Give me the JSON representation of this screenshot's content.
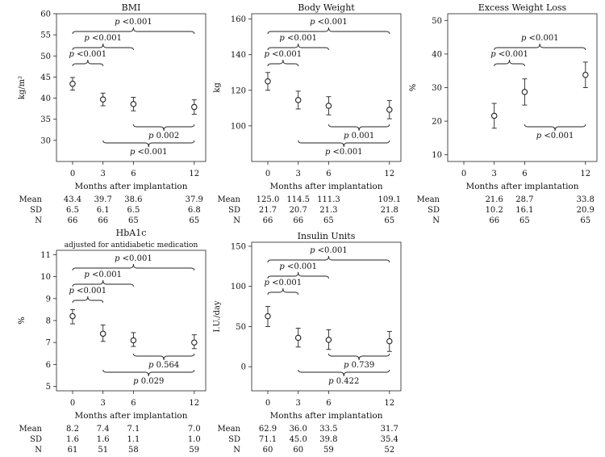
{
  "x_ticks": [
    0,
    3,
    6,
    12
  ],
  "x_axis_label": "Months after implantation",
  "row_labels": [
    "Mean",
    "SD",
    "N"
  ],
  "chart_data": [
    {
      "type": "scatter",
      "title": "BMI",
      "subtitle": "",
      "ylabel": "kg/m²",
      "ylim": [
        25,
        60
      ],
      "yticks": [
        30,
        35,
        40,
        45,
        50,
        55,
        60
      ],
      "x": [
        0,
        3,
        6,
        12
      ],
      "series": [
        {
          "name": "",
          "mean": [
            43.4,
            39.7,
            38.6,
            37.9
          ],
          "ci_low": [
            41.9,
            38.2,
            37.0,
            36.2
          ],
          "ci_high": [
            44.9,
            41.2,
            40.2,
            39.6
          ]
        }
      ],
      "table": {
        "mean": [
          "43.4",
          "39.7",
          "38.6",
          "37.9"
        ],
        "sd": [
          "6.5",
          "6.1",
          "6.5",
          "6.8"
        ],
        "n": [
          "66",
          "66",
          "65",
          "65"
        ]
      },
      "annotations": [
        {
          "text": "p <0.001",
          "from": 0,
          "to": 12,
          "side": "above",
          "level": 3
        },
        {
          "text": "p <0.001",
          "from": 0,
          "to": 6,
          "side": "above",
          "level": 2
        },
        {
          "text": "p <0.001",
          "from": 0,
          "to": 3,
          "side": "above",
          "level": 1
        },
        {
          "text": "p 0.002",
          "from": 6,
          "to": 12,
          "side": "below",
          "level": 1
        },
        {
          "text": "p <0.001",
          "from": 3,
          "to": 12,
          "side": "below",
          "level": 2
        }
      ]
    },
    {
      "type": "scatter",
      "title": "Body Weight",
      "subtitle": "",
      "ylabel": "kg",
      "ylim": [
        80,
        163
      ],
      "yticks": [
        100,
        120,
        140,
        160
      ],
      "x": [
        0,
        3,
        6,
        12
      ],
      "series": [
        {
          "name": "",
          "mean": [
            125.0,
            114.5,
            111.3,
            109.1
          ],
          "ci_low": [
            120.0,
            109.5,
            106.2,
            104.0
          ],
          "ci_high": [
            130.0,
            119.5,
            116.4,
            114.2
          ]
        }
      ],
      "table": {
        "mean": [
          "125.0",
          "114.5",
          "111.3",
          "109.1"
        ],
        "sd": [
          "21.7",
          "20.7",
          "21.3",
          "21.8"
        ],
        "n": [
          "66",
          "66",
          "65",
          "65"
        ]
      },
      "annotations": [
        {
          "text": "p <0.001",
          "from": 0,
          "to": 12,
          "side": "above",
          "level": 3
        },
        {
          "text": "p <0.001",
          "from": 0,
          "to": 6,
          "side": "above",
          "level": 2
        },
        {
          "text": "p <0.001",
          "from": 0,
          "to": 3,
          "side": "above",
          "level": 1
        },
        {
          "text": "p 0.001",
          "from": 6,
          "to": 12,
          "side": "below",
          "level": 1
        },
        {
          "text": "p <0.001",
          "from": 3,
          "to": 12,
          "side": "below",
          "level": 2
        }
      ]
    },
    {
      "type": "scatter",
      "title": "Excess Weight Loss",
      "subtitle": "",
      "ylabel": "%",
      "ylim": [
        8,
        52
      ],
      "yticks": [
        10,
        20,
        30,
        40,
        50
      ],
      "x": [
        0,
        3,
        6,
        12
      ],
      "series": [
        {
          "name": "",
          "mean": [
            null,
            21.6,
            28.7,
            33.8
          ],
          "ci_low": [
            null,
            17.9,
            24.8,
            30.0
          ],
          "ci_high": [
            null,
            25.3,
            32.6,
            37.6
          ]
        }
      ],
      "table": {
        "mean": [
          "",
          "21.6",
          "28.7",
          "33.8"
        ],
        "sd": [
          "",
          "10.2",
          "16.1",
          "20.9"
        ],
        "n": [
          "",
          "66",
          "65",
          "65"
        ]
      },
      "annotations": [
        {
          "text": "p <0.001",
          "from": 3,
          "to": 12,
          "side": "above",
          "level": 2
        },
        {
          "text": "p <0.001",
          "from": 3,
          "to": 6,
          "side": "above",
          "level": 1
        },
        {
          "text": "p <0.001",
          "from": 6,
          "to": 12,
          "side": "below",
          "level": 1
        }
      ]
    },
    {
      "type": "scatter",
      "title": "HbA1c",
      "subtitle": "adjusted for antidiabetic medication",
      "ylabel": "%",
      "ylim": [
        4.8,
        11.2
      ],
      "yticks": [
        5,
        6,
        7,
        8,
        9,
        10,
        11
      ],
      "x": [
        0,
        3,
        6,
        12
      ],
      "series": [
        {
          "name": "",
          "mean": [
            8.2,
            7.4,
            7.1,
            7.0
          ],
          "ci_low": [
            7.85,
            7.05,
            6.82,
            6.72
          ],
          "ci_high": [
            8.5,
            7.8,
            7.45,
            7.35
          ]
        }
      ],
      "table": {
        "mean": [
          "8.2",
          "7.4",
          "7.1",
          "7.0"
        ],
        "sd": [
          "1.6",
          "1.6",
          "1.1",
          "1.0"
        ],
        "n": [
          "61",
          "51",
          "58",
          "59"
        ]
      },
      "annotations": [
        {
          "text": "p <0.001",
          "from": 0,
          "to": 12,
          "side": "above",
          "level": 3
        },
        {
          "text": "p <0.001",
          "from": 0,
          "to": 6,
          "side": "above",
          "level": 2
        },
        {
          "text": "p <0.001",
          "from": 0,
          "to": 3,
          "side": "above",
          "level": 1
        },
        {
          "text": "p 0.564",
          "from": 6,
          "to": 12,
          "side": "below",
          "level": 1
        },
        {
          "text": "p 0.029",
          "from": 3,
          "to": 12,
          "side": "below",
          "level": 2
        }
      ]
    },
    {
      "type": "scatter",
      "title": "Insulin Units",
      "subtitle": "",
      "ylabel": "I.U./day",
      "ylim": [
        -30,
        155
      ],
      "yticks": [
        0,
        50,
        100,
        150
      ],
      "x": [
        0,
        3,
        6,
        12
      ],
      "series": [
        {
          "name": "",
          "mean": [
            62.9,
            36.0,
            33.5,
            31.7
          ],
          "ci_low": [
            50.0,
            24.5,
            21.5,
            19.0
          ],
          "ci_high": [
            75.0,
            48.0,
            46.0,
            44.0
          ]
        }
      ],
      "table": {
        "mean": [
          "62.9",
          "36.0",
          "33.5",
          "31.7"
        ],
        "sd": [
          "71.1",
          "45.0",
          "39.8",
          "35.4"
        ],
        "n": [
          "60",
          "60",
          "59",
          "52"
        ]
      },
      "annotations": [
        {
          "text": "p <0.001",
          "from": 0,
          "to": 12,
          "side": "above",
          "level": 3
        },
        {
          "text": "p <0.001",
          "from": 0,
          "to": 6,
          "side": "above",
          "level": 2
        },
        {
          "text": "p <0.001",
          "from": 0,
          "to": 3,
          "side": "above",
          "level": 1
        },
        {
          "text": "p 0.739",
          "from": 6,
          "to": 12,
          "side": "below",
          "level": 1
        },
        {
          "text": "p 0.422",
          "from": 3,
          "to": 12,
          "side": "below",
          "level": 2
        }
      ]
    }
  ]
}
